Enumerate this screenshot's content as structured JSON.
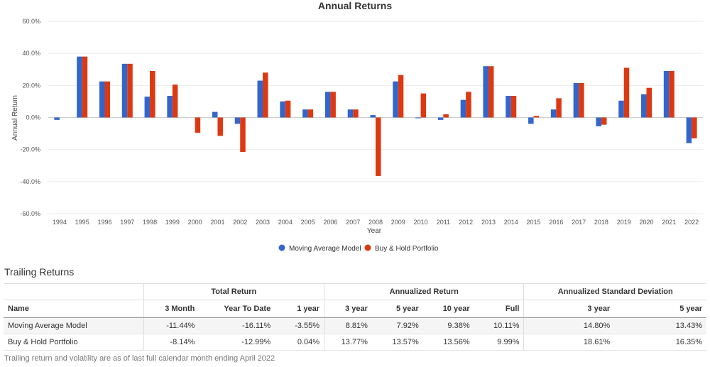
{
  "chart_data": {
    "type": "bar",
    "title": "Annual Returns",
    "xlabel": "Year",
    "ylabel": "Annual Return",
    "ylim": [
      -60,
      60
    ],
    "y_ticks": [
      "60.0%",
      "40.0%",
      "20.0%",
      "0.0%",
      "-20.0%",
      "-40.0%",
      "-60.0%"
    ],
    "y_tick_values": [
      60,
      40,
      20,
      0,
      -20,
      -40,
      -60
    ],
    "grid": true,
    "legend_position": "bottom",
    "categories": [
      "1994",
      "1995",
      "1996",
      "1997",
      "1998",
      "1999",
      "2000",
      "2001",
      "2002",
      "2003",
      "2004",
      "2005",
      "2006",
      "2007",
      "2008",
      "2009",
      "2010",
      "2011",
      "2012",
      "2013",
      "2014",
      "2015",
      "2016",
      "2017",
      "2018",
      "2019",
      "2020",
      "2021",
      "2022"
    ],
    "series": [
      {
        "name": "Moving Average Model",
        "color": "#3366cc",
        "values": [
          -1.5,
          38.0,
          22.5,
          33.5,
          13.0,
          13.5,
          null,
          3.5,
          -4.0,
          23.0,
          10.0,
          5.0,
          16.0,
          5.0,
          1.5,
          22.5,
          -0.5,
          -1.5,
          11.0,
          32.0,
          13.5,
          -4.0,
          5.0,
          21.5,
          -5.5,
          10.5,
          14.5,
          29.0,
          -16.0
        ]
      },
      {
        "name": "Buy & Hold Portfolio",
        "color": "#dc3912",
        "values": [
          null,
          38.0,
          22.5,
          33.5,
          29.0,
          20.5,
          -9.5,
          -11.5,
          -21.5,
          28.0,
          10.5,
          5.0,
          16.0,
          5.0,
          -36.5,
          26.5,
          15.0,
          2.0,
          16.0,
          32.0,
          13.5,
          1.0,
          12.0,
          21.5,
          -4.5,
          31.0,
          18.5,
          29.0,
          -13.0
        ]
      }
    ]
  },
  "trailing": {
    "title": "Trailing Returns",
    "groups": {
      "total_return": "Total Return",
      "annualized_return": "Annualized Return",
      "annualized_sd": "Annualized Standard Deviation"
    },
    "columns": {
      "name": "Name",
      "m3": "3 Month",
      "ytd": "Year To Date",
      "y1": "1 year",
      "y3": "3 year",
      "y5": "5 year",
      "y10": "10 year",
      "full": "Full",
      "sd3": "3 year",
      "sd5": "5 year"
    },
    "rows": [
      {
        "name": "Moving Average Model",
        "m3": "-11.44%",
        "ytd": "-16.11%",
        "y1": "-3.55%",
        "y3": "8.81%",
        "y5": "7.92%",
        "y10": "9.38%",
        "full": "10.11%",
        "sd3": "14.80%",
        "sd5": "13.43%"
      },
      {
        "name": "Buy & Hold Portfolio",
        "m3": "-8.14%",
        "ytd": "-12.99%",
        "y1": "0.04%",
        "y3": "13.77%",
        "y5": "13.57%",
        "y10": "13.56%",
        "full": "9.99%",
        "sd3": "18.61%",
        "sd5": "16.35%"
      }
    ],
    "footnote": "Trailing return and volatility are as of last full calendar month ending April 2022"
  }
}
